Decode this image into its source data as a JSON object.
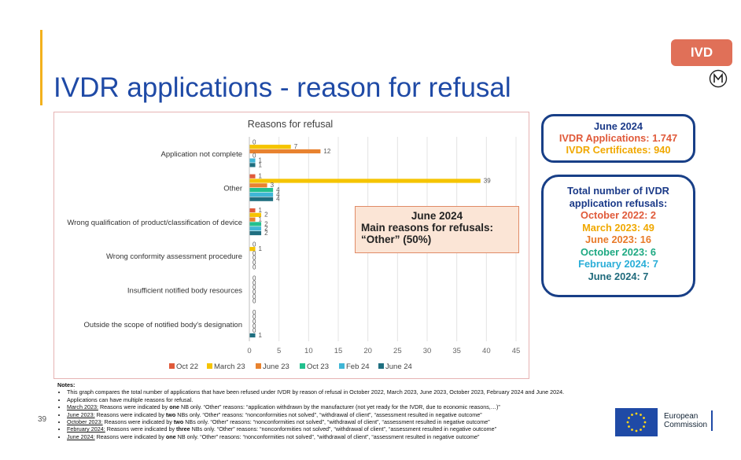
{
  "title": "IVDR applications - reason for refusal",
  "badge": "IVD",
  "page_number": "39",
  "chart_data": {
    "type": "bar",
    "orientation": "horizontal",
    "title": "Reasons for refusal",
    "categories": [
      "Application not complete",
      "Other",
      "Wrong qualification of product/classification of device",
      "Wrong conformity assessment procedure",
      "Insufficient notified body resources",
      "Outside the scope of notified body's designation"
    ],
    "series": [
      {
        "name": "Oct 22",
        "color": "#e05a3a",
        "values": [
          0,
          1,
          1,
          0,
          0,
          0
        ]
      },
      {
        "name": "March 23",
        "color": "#f5c400",
        "values": [
          7,
          39,
          2,
          1,
          0,
          0
        ]
      },
      {
        "name": "June 23",
        "color": "#e8822f",
        "values": [
          12,
          3,
          1,
          0,
          0,
          0
        ]
      },
      {
        "name": "Oct 23",
        "color": "#22c08e",
        "values": [
          0,
          4,
          2,
          0,
          0,
          0
        ]
      },
      {
        "name": "Feb 24",
        "color": "#3fb6d6",
        "values": [
          1,
          4,
          2,
          0,
          0,
          0
        ]
      },
      {
        "name": "June 24",
        "color": "#1f6f80",
        "values": [
          1,
          4,
          2,
          0,
          0,
          1
        ]
      }
    ],
    "xlim": [
      0,
      45
    ],
    "xticks": [
      0,
      5,
      10,
      15,
      20,
      25,
      30,
      35,
      40,
      45
    ],
    "legend": "bottom",
    "grid": true
  },
  "callout": {
    "line1": "June 2024",
    "line2": "Main reasons for refusals:",
    "line3": "“Other” (50%)"
  },
  "box1": {
    "heading": "June 2024",
    "applications": "IVDR Applications: 1.747",
    "certificates": "IVDR Certificates: 940"
  },
  "box2": {
    "heading_line1": "Total number of IVDR",
    "heading_line2": "application refusals:",
    "oct22": "October 2022: 2",
    "mar23": "March 2023: 49",
    "jun23": "June 2023: 16",
    "oct23": "October 2023: 6",
    "feb24": "February 2024: 7",
    "jun24": "June 2024: 7"
  },
  "notes": {
    "heading": "Notes:",
    "n1": "This graph compares the total number of applications that have been refused under IVDR by reason of refusal in October 2022, March 2023, June 2023, October 2023, February 2024 and June 2024.",
    "n2": "Applications can have multiple reasons for refusal.",
    "n3_label": "March 2023:",
    "n3_pre": " Reasons were indicated by ",
    "n3_bold": "one",
    "n3_post": " NB only. “Other” reasons: “application withdrawn by the manufacturer (not yet ready for the IVDR, due to economic reasons,…)”",
    "n4_label": "June 2023:",
    "n4_pre": "  Reasons were indicated by ",
    "n4_bold": "two",
    "n4_post": " NBs only. “Other” reasons: “nonconformities not solved”, “withdrawal of client”, “assessment resulted in negative outcome”",
    "n5_label": "October 2023:",
    "n5_pre": " Reasons were indicated by ",
    "n5_bold": "two",
    "n5_post": " NBs only. “Other” reasons: “nonconformities not solved”, “withdrawal of client”, “assessment resulted in negative outcome”",
    "n6_label": "February 2024:",
    "n6_pre": " Reasons were indicated by ",
    "n6_bold": "three",
    "n6_post": " NBs only. “Other” reasons: “nonconformities not solved”, “withdrawal of client”, “assessment resulted in negative outcome”",
    "n7_label": "June 2024:",
    "n7_pre": " Reasons were indicated by ",
    "n7_bold": "one",
    "n7_post": " NB only. “Other” reasons: “nonconformities not solved”, “withdrawal of client”, “assessment resulted in negative outcome”"
  },
  "footer": {
    "ec_line1": "European",
    "ec_line2": "Commission"
  }
}
